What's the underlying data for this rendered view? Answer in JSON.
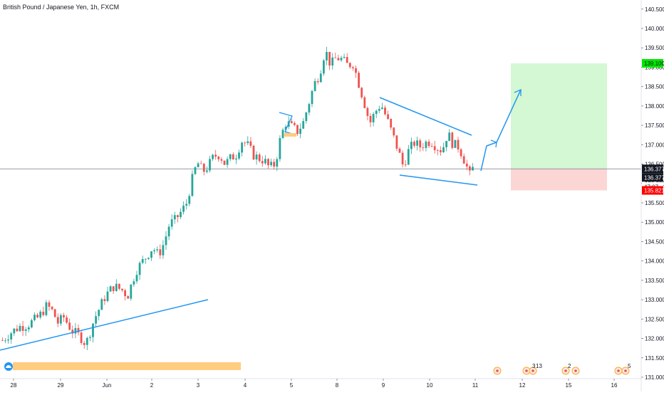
{
  "header": {
    "title": "British Pound / Japanese Yen, 1h, FXCM"
  },
  "colors": {
    "up": "#26a69a",
    "down": "#ef5350",
    "trendline": "#2196f3",
    "target_zone": "#d4f7d4",
    "stop_zone": "#fcd5d5",
    "highlight": "#ffcc80",
    "target_tag": "#00e600",
    "stop_tag": "#ff0000"
  },
  "price_tags": {
    "current": "136.377",
    "current_bid": "136.377",
    "countdown": "47:07",
    "stop": "135.821",
    "target": "139.100"
  },
  "events": {
    "e1_count": "3",
    "e2_count": "13",
    "e3_count": "2",
    "e4_count": "5"
  },
  "chart_data": {
    "type": "candlestick",
    "title": "British Pound / Japanese Yen, 1h, FXCM",
    "xlabel": "",
    "ylabel": "",
    "x_ticks": [
      "28",
      "29",
      "Jun",
      "2",
      "3",
      "4",
      "5",
      "8",
      "9",
      "10",
      "11",
      "12",
      "15",
      "16"
    ],
    "y_ticks": [
      "131.000",
      "131.500",
      "132.000",
      "132.500",
      "133.000",
      "133.500",
      "134.000",
      "134.500",
      "135.000",
      "135.500",
      "136.000",
      "136.500",
      "137.000",
      "137.500",
      "138.000",
      "138.500",
      "139.000",
      "139.500",
      "140.000",
      "140.500"
    ],
    "ylim": [
      130.95,
      140.7
    ],
    "grid": false,
    "price_path": [
      [
        0,
        131.95
      ],
      [
        3,
        132.15
      ],
      [
        6,
        132.3
      ],
      [
        9,
        132.35
      ],
      [
        13,
        132.55
      ],
      [
        16,
        132.85
      ],
      [
        18,
        132.7
      ],
      [
        20,
        132.4
      ],
      [
        22,
        132.55
      ],
      [
        25,
        132.2
      ],
      [
        28,
        132.05
      ],
      [
        30,
        131.85
      ],
      [
        33,
        132.5
      ],
      [
        37,
        133.1
      ],
      [
        40,
        133.35
      ],
      [
        43,
        133.25
      ],
      [
        45,
        133.1
      ],
      [
        48,
        133.75
      ],
      [
        51,
        134.05
      ],
      [
        54,
        134.35
      ],
      [
        56,
        134.15
      ],
      [
        58,
        134.45
      ],
      [
        60,
        134.95
      ],
      [
        62,
        135.05
      ],
      [
        64,
        135.25
      ],
      [
        66,
        135.45
      ],
      [
        68,
        136.05
      ],
      [
        70,
        136.55
      ],
      [
        72,
        136.3
      ],
      [
        74,
        136.45
      ],
      [
        76,
        136.7
      ],
      [
        78,
        136.75
      ],
      [
        80,
        136.5
      ],
      [
        82,
        136.65
      ],
      [
        84,
        136.75
      ],
      [
        86,
        137.1
      ],
      [
        88,
        137.0
      ],
      [
        90,
        136.75
      ],
      [
        92,
        136.65
      ],
      [
        94,
        136.6
      ],
      [
        96,
        136.4
      ],
      [
        98,
        136.5
      ],
      [
        100,
        137.2
      ],
      [
        102,
        137.6
      ],
      [
        104,
        137.45
      ],
      [
        106,
        137.35
      ],
      [
        108,
        137.55
      ],
      [
        110,
        138.05
      ],
      [
        112,
        138.55
      ],
      [
        114,
        138.85
      ],
      [
        116,
        139.45
      ],
      [
        118,
        139.05
      ],
      [
        120,
        139.25
      ],
      [
        122,
        139.2
      ],
      [
        124,
        139.05
      ],
      [
        126,
        139.1
      ],
      [
        128,
        138.6
      ],
      [
        130,
        138.1
      ],
      [
        132,
        137.55
      ],
      [
        134,
        137.85
      ],
      [
        136,
        138.05
      ],
      [
        138,
        137.7
      ],
      [
        140,
        137.3
      ],
      [
        142,
        136.9
      ],
      [
        144,
        136.45
      ],
      [
        146,
        136.85
      ],
      [
        148,
        137.05
      ],
      [
        150,
        136.95
      ],
      [
        152,
        137.05
      ],
      [
        154,
        137.1
      ],
      [
        156,
        136.95
      ],
      [
        158,
        136.85
      ],
      [
        160,
        137.3
      ],
      [
        162,
        137.0
      ],
      [
        164,
        136.95
      ],
      [
        166,
        136.6
      ],
      [
        168,
        136.2
      ],
      [
        169,
        136.38
      ]
    ],
    "annotations": [
      {
        "type": "trend_line",
        "from": [
          0,
          131.95
        ],
        "to": [
          45,
          133.0
        ]
      },
      {
        "type": "trend_line",
        "from": [
          132,
          138.2
        ],
        "to": [
          166,
          137.25
        ]
      },
      {
        "type": "trend_line",
        "from": [
          133,
          136.3
        ],
        "to": [
          170,
          136.05
        ]
      },
      {
        "type": "arrow_path",
        "points": [
          [
            170,
            136.3
          ],
          [
            175,
            136.95
          ],
          [
            184,
            138.45
          ]
        ]
      },
      {
        "type": "long_position",
        "entry": 136.377,
        "target": 139.1,
        "stop": 135.821,
        "x_start": 180,
        "x_end": 216
      }
    ]
  }
}
